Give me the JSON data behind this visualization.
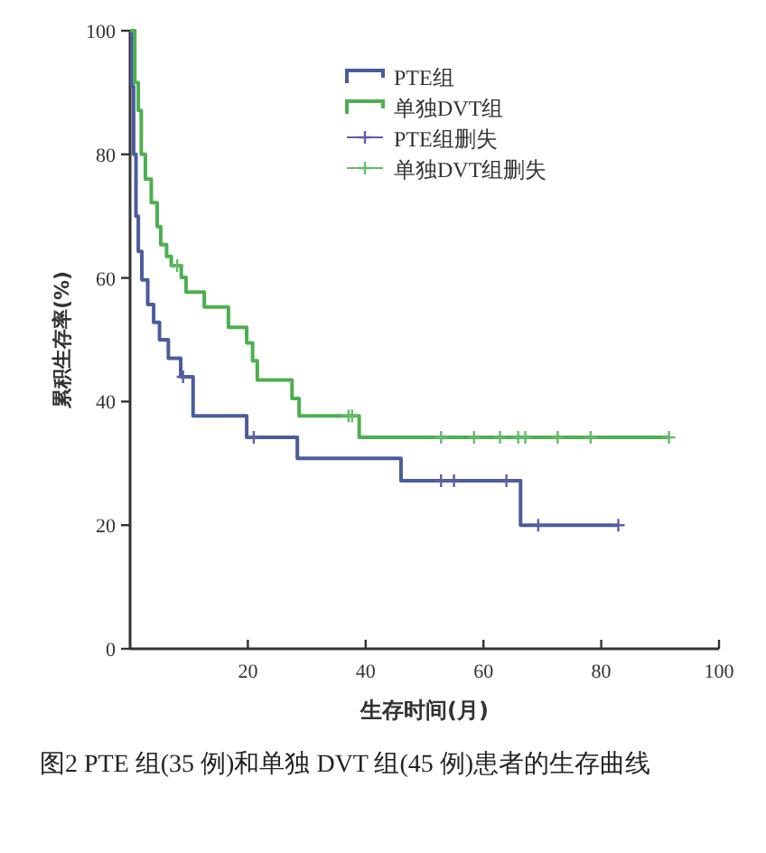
{
  "chart_data": {
    "type": "step",
    "xlabel": "生存时间(月)",
    "ylabel": "累积生存率(%)",
    "annotations": [
      "图2 PTE 组(35 例)和单独 DVT 组(45 例)患者的生存曲线"
    ],
    "xlim": [
      0,
      100
    ],
    "xticks": [
      20,
      40,
      60,
      80,
      100
    ],
    "ylim": [
      0,
      100
    ],
    "yticks": [
      0,
      20,
      40,
      60,
      80,
      100
    ],
    "grid": false,
    "legend": "top right",
    "series": [
      {
        "name": "PTE组",
        "type": "step",
        "color": "#4a5c9c",
        "x": [
          0,
          0.3,
          0.6,
          1,
          1.4,
          2,
          3,
          4,
          5,
          6.5,
          8.6,
          10.7,
          19.8,
          28.4,
          46,
          66.3,
          82.9
        ],
        "values": [
          100,
          91,
          80,
          70,
          64.3,
          59.7,
          55.7,
          52.8,
          50,
          47,
          44,
          37.7,
          34.2,
          30.8,
          27.2,
          20,
          20
        ]
      },
      {
        "name": "单独DVT组",
        "type": "step",
        "color": "#4caf50",
        "x": [
          0,
          0.8,
          1.4,
          1.9,
          2.6,
          3.6,
          4.6,
          5.2,
          6.2,
          7,
          8.7,
          9.5,
          12.6,
          16.7,
          19.8,
          20.8,
          21.6,
          27.5,
          28.7,
          38.9,
          91.5
        ],
        "values": [
          100,
          91.6,
          87.1,
          80,
          76,
          72.2,
          68.3,
          65.4,
          63.5,
          62,
          60.1,
          57.7,
          55.3,
          52,
          49.5,
          46.6,
          43.5,
          40.5,
          37.7,
          34.2,
          34.2
        ]
      },
      {
        "name": "PTE组删失",
        "type": "scatter",
        "marker": "cross",
        "color": "#5b5ea6",
        "x": [
          9,
          21,
          52.8,
          55,
          63.9,
          69.3,
          82.9
        ],
        "values": [
          44,
          34.2,
          27.2,
          27.2,
          27.2,
          20,
          20
        ]
      },
      {
        "name": "单独DVT组删失",
        "type": "scatter",
        "marker": "cross",
        "color": "#66bb6a",
        "x": [
          8,
          37.1,
          37.7,
          52.8,
          58.4,
          62.8,
          65.9,
          67.1,
          72.6,
          78.2,
          91.5
        ],
        "values": [
          62,
          37.7,
          37.7,
          34.2,
          34.2,
          34.2,
          34.2,
          34.2,
          34.2,
          34.2,
          34.2
        ]
      }
    ]
  }
}
